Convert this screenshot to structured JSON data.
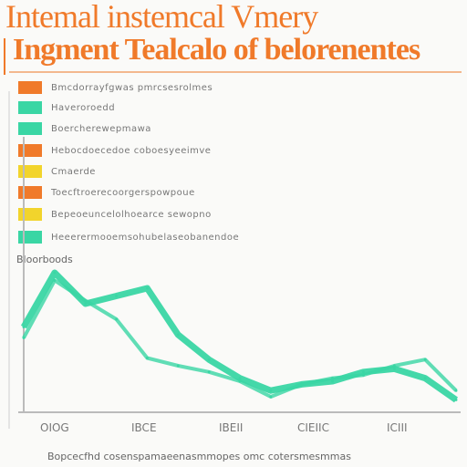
{
  "title": {
    "line1": "Intemal instemcal Vmery",
    "line2": "Ingment Tealcalo of belorenentes"
  },
  "legend": [
    {
      "color": "#f07a2a",
      "text": "Bmcdorrayfgwas pmrcsesrolmes"
    },
    {
      "color": "#3ad6a4",
      "text": "Haveroroedd"
    },
    {
      "color": "#3ad6a4",
      "text": "Boercherewepmawa"
    },
    {
      "color": "#f07a2a",
      "text": "Hebocdoecedoe coboesyeeimve"
    },
    {
      "color": "#f2d42c",
      "text": "Cmaerde"
    },
    {
      "color": "#f07a2a",
      "text": "Toecftroerecoorgerspowpoue"
    },
    {
      "color": "#f2d42c",
      "text": "Bepeoeuncelolhoearce sewopno"
    },
    {
      "color": "#3ad6a4",
      "text": "Heeerermooemsohubelaseobanendoe"
    }
  ],
  "series_label": "Bloorboods",
  "footer": "Bopcecfhd cosenspamaeenasmmopes omc cotersmesmmas",
  "chart_data": {
    "type": "line",
    "title": "Intemal instemcal Vmery",
    "xlabel": "",
    "ylabel": "",
    "categories": [
      "OIOG",
      "IBCE",
      "IBEII",
      "CIEIIC",
      "ICIII"
    ],
    "x": [
      0,
      1,
      2,
      3,
      4,
      5,
      6,
      7,
      8,
      9,
      10,
      11,
      12,
      13,
      14
    ],
    "xlim": [
      0,
      14
    ],
    "ylim": [
      0,
      100
    ],
    "series": [
      {
        "color": "#3ad6a4",
        "values": [
          55,
          90,
          70,
          75,
          80,
          50,
          34,
          22,
          14,
          18,
          20,
          26,
          28,
          22,
          8
        ]
      },
      {
        "color": "#3ad6a4",
        "values": [
          48,
          85,
          72,
          60,
          35,
          30,
          26,
          20,
          10,
          18,
          22,
          24,
          30,
          34,
          14
        ]
      }
    ]
  }
}
